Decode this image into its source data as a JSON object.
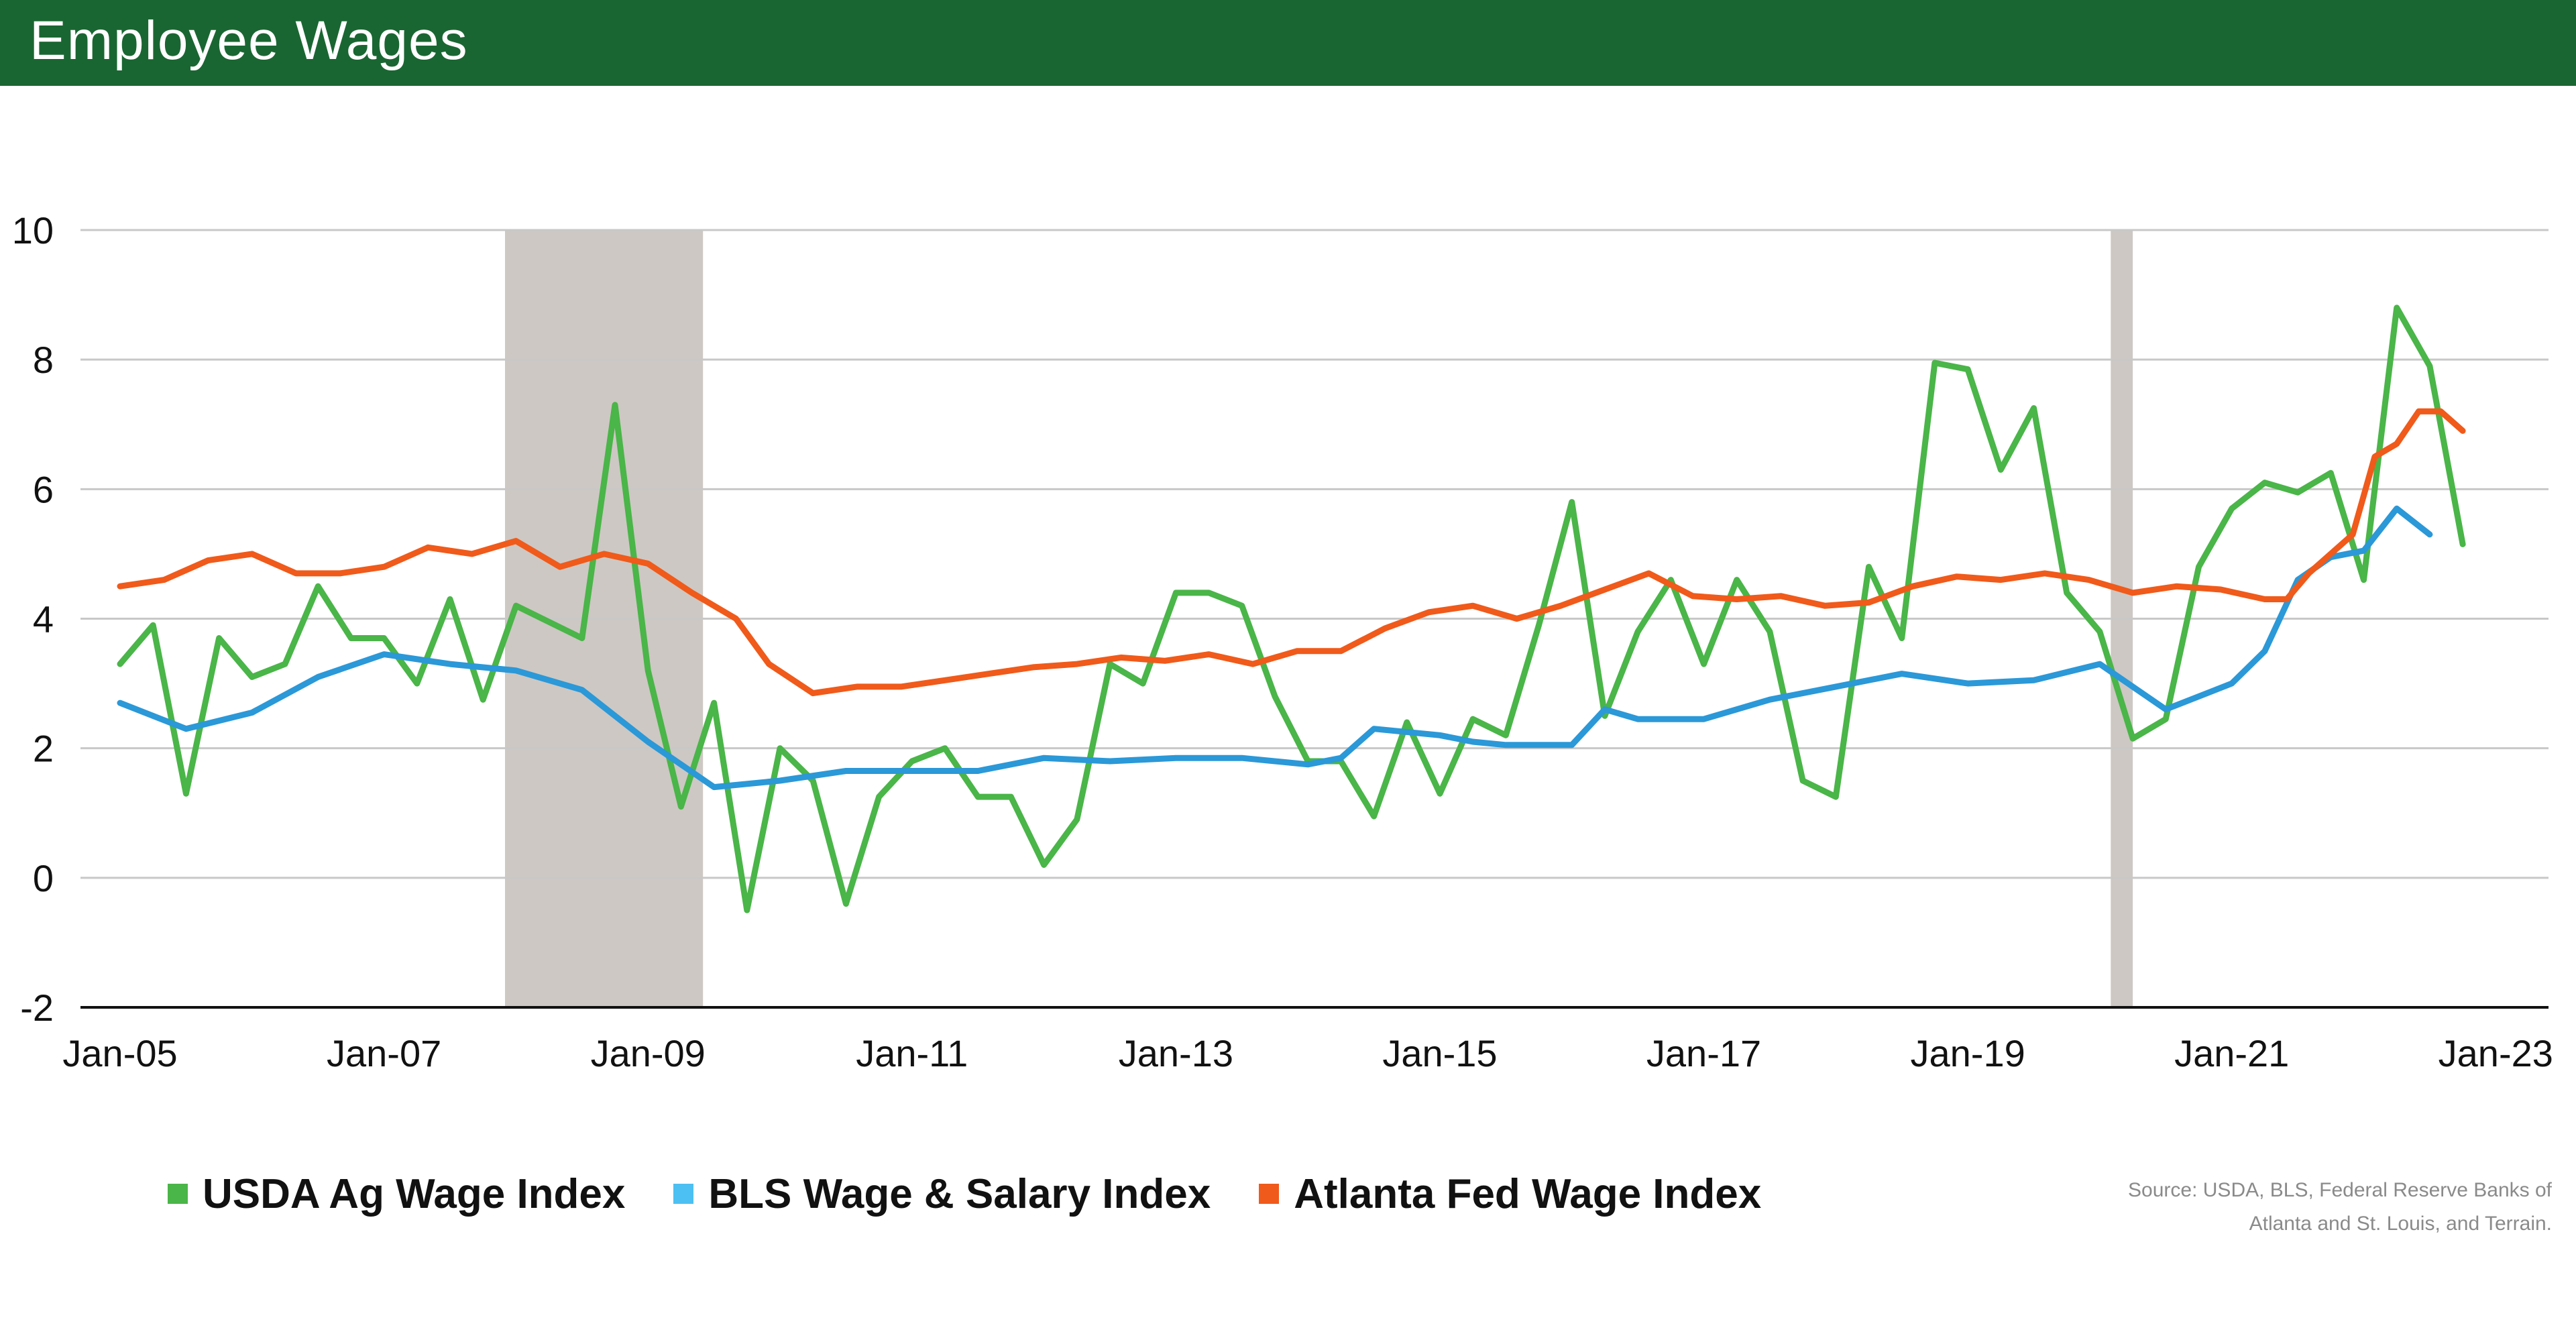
{
  "header": {
    "title": "Employee Wages"
  },
  "source": {
    "line1": "Source: USDA, BLS, Federal Reserve Banks of",
    "line2": "Atlanta and St. Louis, and Terrain."
  },
  "colors": {
    "header_bg": "#1a6632",
    "usda": "#4ab548",
    "bls": "#2b98d8",
    "atlanta": "#f05a1a",
    "recession": "#cdc8c3",
    "grid": "#c8c8c8"
  },
  "chart_data": {
    "type": "line",
    "title": "Employee Wages",
    "xlabel": "",
    "ylabel": "",
    "ylim": [
      -2,
      10
    ],
    "yticks": [
      "-2",
      "0",
      "2",
      "4",
      "6",
      "8",
      "10"
    ],
    "xlim": [
      "2005-01",
      "2023-01"
    ],
    "xticks": [
      "Jan-05",
      "Jan-07",
      "Jan-09",
      "Jan-11",
      "Jan-13",
      "Jan-15",
      "Jan-17",
      "Jan-19",
      "Jan-21",
      "Jan-23"
    ],
    "grid": "horizontal",
    "legend_position": "bottom",
    "recession_bands": [
      {
        "start": "2007-12",
        "end": "2009-06"
      },
      {
        "start": "2020-02",
        "end": "2020-04"
      }
    ],
    "series": [
      {
        "name": "USDA Ag Wage Index",
        "color": "#4ab548",
        "points": [
          [
            "2005-01",
            3.3
          ],
          [
            "2005-04",
            3.9
          ],
          [
            "2005-07",
            1.3
          ],
          [
            "2005-10",
            3.7
          ],
          [
            "2006-01",
            3.1
          ],
          [
            "2006-04",
            3.3
          ],
          [
            "2006-07",
            4.5
          ],
          [
            "2006-10",
            3.7
          ],
          [
            "2007-01",
            3.7
          ],
          [
            "2007-04",
            3.0
          ],
          [
            "2007-07",
            4.3
          ],
          [
            "2007-10",
            2.75
          ],
          [
            "2008-01",
            4.2
          ],
          [
            "2008-07",
            3.7
          ],
          [
            "2008-10",
            7.3
          ],
          [
            "2009-01",
            3.2
          ],
          [
            "2009-04",
            1.1
          ],
          [
            "2009-07",
            2.7
          ],
          [
            "2009-10",
            -0.5
          ],
          [
            "2010-01",
            2.0
          ],
          [
            "2010-04",
            1.5
          ],
          [
            "2010-07",
            -0.4
          ],
          [
            "2010-10",
            1.25
          ],
          [
            "2011-01",
            1.8
          ],
          [
            "2011-04",
            2.0
          ],
          [
            "2011-07",
            1.25
          ],
          [
            "2011-10",
            1.25
          ],
          [
            "2012-01",
            0.2
          ],
          [
            "2012-04",
            0.9
          ],
          [
            "2012-07",
            3.3
          ],
          [
            "2012-10",
            3.0
          ],
          [
            "2013-01",
            4.4
          ],
          [
            "2013-04",
            4.4
          ],
          [
            "2013-07",
            4.2
          ],
          [
            "2013-10",
            2.8
          ],
          [
            "2014-01",
            1.8
          ],
          [
            "2014-04",
            1.8
          ],
          [
            "2014-07",
            0.95
          ],
          [
            "2014-10",
            2.4
          ],
          [
            "2015-01",
            1.3
          ],
          [
            "2015-04",
            2.45
          ],
          [
            "2015-07",
            2.2
          ],
          [
            "2015-10",
            3.9
          ],
          [
            "2016-01",
            5.8
          ],
          [
            "2016-04",
            2.5
          ],
          [
            "2016-07",
            3.8
          ],
          [
            "2016-10",
            4.6
          ],
          [
            "2017-01",
            3.3
          ],
          [
            "2017-04",
            4.6
          ],
          [
            "2017-07",
            3.8
          ],
          [
            "2017-10",
            1.5
          ],
          [
            "2018-01",
            1.25
          ],
          [
            "2018-04",
            4.8
          ],
          [
            "2018-07",
            3.7
          ],
          [
            "2018-10",
            7.95
          ],
          [
            "2019-01",
            7.85
          ],
          [
            "2019-04",
            6.3
          ],
          [
            "2019-07",
            7.25
          ],
          [
            "2019-10",
            4.4
          ],
          [
            "2020-01",
            3.8
          ],
          [
            "2020-04",
            2.15
          ],
          [
            "2020-07",
            2.45
          ],
          [
            "2020-10",
            4.8
          ],
          [
            "2021-01",
            5.7
          ],
          [
            "2021-04",
            6.1
          ],
          [
            "2021-07",
            5.95
          ],
          [
            "2021-10",
            6.25
          ],
          [
            "2022-01",
            4.6
          ],
          [
            "2022-04",
            8.8
          ],
          [
            "2022-07",
            7.9
          ],
          [
            "2022-10",
            5.15
          ]
        ]
      },
      {
        "name": "BLS Wage & Salary Index",
        "color": "#2b98d8",
        "points": [
          [
            "2005-01",
            2.7
          ],
          [
            "2005-07",
            2.3
          ],
          [
            "2006-01",
            2.55
          ],
          [
            "2006-07",
            3.1
          ],
          [
            "2007-01",
            3.45
          ],
          [
            "2007-07",
            3.3
          ],
          [
            "2008-01",
            3.2
          ],
          [
            "2008-07",
            2.9
          ],
          [
            "2009-01",
            2.1
          ],
          [
            "2009-07",
            1.4
          ],
          [
            "2010-01",
            1.5
          ],
          [
            "2010-07",
            1.65
          ],
          [
            "2011-01",
            1.65
          ],
          [
            "2011-07",
            1.65
          ],
          [
            "2012-01",
            1.85
          ],
          [
            "2012-07",
            1.8
          ],
          [
            "2013-01",
            1.85
          ],
          [
            "2013-07",
            1.85
          ],
          [
            "2014-01",
            1.75
          ],
          [
            "2014-04",
            1.85
          ],
          [
            "2014-07",
            2.3
          ],
          [
            "2015-01",
            2.2
          ],
          [
            "2015-04",
            2.1
          ],
          [
            "2015-07",
            2.05
          ],
          [
            "2016-01",
            2.05
          ],
          [
            "2016-04",
            2.6
          ],
          [
            "2016-07",
            2.45
          ],
          [
            "2017-01",
            2.45
          ],
          [
            "2017-07",
            2.75
          ],
          [
            "2018-01",
            2.95
          ],
          [
            "2018-07",
            3.15
          ],
          [
            "2019-01",
            3.0
          ],
          [
            "2019-07",
            3.05
          ],
          [
            "2020-01",
            3.3
          ],
          [
            "2020-07",
            2.6
          ],
          [
            "2021-01",
            3.0
          ],
          [
            "2021-04",
            3.5
          ],
          [
            "2021-07",
            4.6
          ],
          [
            "2021-10",
            4.95
          ],
          [
            "2022-01",
            5.05
          ],
          [
            "2022-04",
            5.7
          ],
          [
            "2022-07",
            5.3
          ]
        ]
      },
      {
        "name": "Atlanta Fed Wage Index",
        "color": "#f05a1a",
        "points": [
          [
            "2005-01",
            4.5
          ],
          [
            "2005-05",
            4.6
          ],
          [
            "2005-09",
            4.9
          ],
          [
            "2006-01",
            5.0
          ],
          [
            "2006-05",
            4.7
          ],
          [
            "2006-09",
            4.7
          ],
          [
            "2007-01",
            4.8
          ],
          [
            "2007-05",
            5.1
          ],
          [
            "2007-09",
            5.0
          ],
          [
            "2008-01",
            5.2
          ],
          [
            "2008-05",
            4.8
          ],
          [
            "2008-09",
            5.0
          ],
          [
            "2009-01",
            4.85
          ],
          [
            "2009-05",
            4.4
          ],
          [
            "2009-09",
            4.0
          ],
          [
            "2009-12",
            3.3
          ],
          [
            "2010-04",
            2.85
          ],
          [
            "2010-08",
            2.95
          ],
          [
            "2010-12",
            2.95
          ],
          [
            "2011-04",
            3.05
          ],
          [
            "2011-08",
            3.15
          ],
          [
            "2011-12",
            3.25
          ],
          [
            "2012-04",
            3.3
          ],
          [
            "2012-08",
            3.4
          ],
          [
            "2012-12",
            3.35
          ],
          [
            "2013-04",
            3.45
          ],
          [
            "2013-08",
            3.3
          ],
          [
            "2013-12",
            3.5
          ],
          [
            "2014-04",
            3.5
          ],
          [
            "2014-08",
            3.85
          ],
          [
            "2014-12",
            4.1
          ],
          [
            "2015-04",
            4.2
          ],
          [
            "2015-08",
            4.0
          ],
          [
            "2015-12",
            4.2
          ],
          [
            "2016-04",
            4.45
          ],
          [
            "2016-08",
            4.7
          ],
          [
            "2016-12",
            4.35
          ],
          [
            "2017-04",
            4.3
          ],
          [
            "2017-08",
            4.35
          ],
          [
            "2017-12",
            4.2
          ],
          [
            "2018-04",
            4.25
          ],
          [
            "2018-08",
            4.5
          ],
          [
            "2018-12",
            4.65
          ],
          [
            "2019-04",
            4.6
          ],
          [
            "2019-08",
            4.7
          ],
          [
            "2019-12",
            4.6
          ],
          [
            "2020-04",
            4.4
          ],
          [
            "2020-08",
            4.5
          ],
          [
            "2020-12",
            4.45
          ],
          [
            "2021-04",
            4.3
          ],
          [
            "2021-06",
            4.3
          ],
          [
            "2021-08",
            4.7
          ],
          [
            "2021-10",
            5.0
          ],
          [
            "2021-12",
            5.3
          ],
          [
            "2022-02",
            6.5
          ],
          [
            "2022-04",
            6.7
          ],
          [
            "2022-06",
            7.2
          ],
          [
            "2022-08",
            7.2
          ],
          [
            "2022-10",
            6.9
          ]
        ]
      }
    ]
  }
}
